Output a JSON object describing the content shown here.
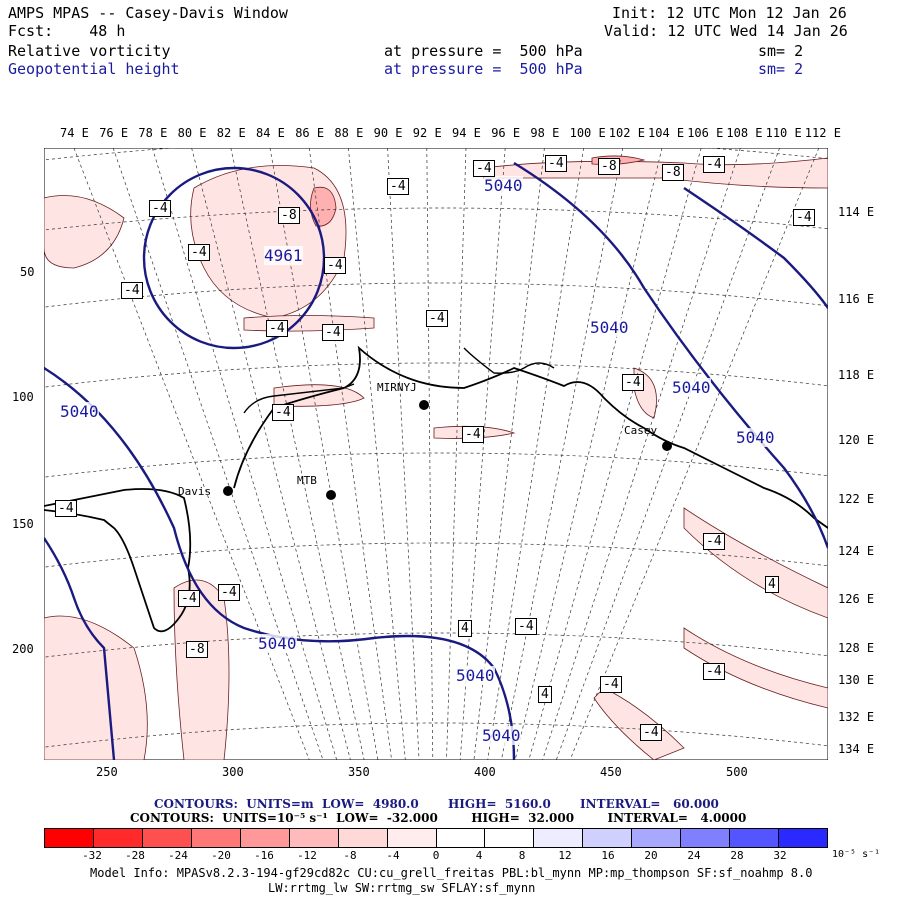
{
  "header": {
    "line1_left": "AMPS MPAS -- Casey-Davis Window",
    "line2_left": "Fcst:    48 h",
    "line1_right": "Init: 12 UTC Mon 12 Jan 26",
    "line2_right": "Valid: 12 UTC Wed 14 Jan 26",
    "field1_name": "Relative vorticity",
    "field1_level": "at pressure =  500 hPa",
    "field1_sm": "sm= 2",
    "field2_name": "Geopotential height",
    "field2_level": "at pressure =  500 hPa",
    "field2_sm": "sm= 2"
  },
  "top_lon_labels": [
    "74 E",
    "76 E",
    "78 E",
    "80 E",
    "82 E",
    "84 E",
    "86 E",
    "88 E",
    "90 E",
    "92 E",
    "94 E",
    "96 E",
    "98 E",
    "100 E",
    "102 E",
    "104 E",
    "106 E",
    "108 E",
    "110 E",
    "112 E"
  ],
  "right_lon_labels": [
    "114 E",
    "116 E",
    "118 E",
    "120 E",
    "122 E",
    "124 E",
    "126 E",
    "128 E",
    "130 E",
    "132 E",
    "134 E"
  ],
  "left_y_labels": [
    "50",
    "100",
    "150",
    "200"
  ],
  "bottom_x_labels": [
    "250",
    "300",
    "350",
    "400",
    "450",
    "500"
  ],
  "stations": {
    "mirny": "MIRNYJ",
    "casey": "Casey",
    "davis": "Davis",
    "mtb": "MTB"
  },
  "height_labels": {
    "low": "4961",
    "c5040": "5040"
  },
  "vort_labels": {
    "m4": "-4",
    "m8": "-8",
    "p4": "4"
  },
  "footer": {
    "line1": "CONTOURS:  UNITS=m  LOW=  4980.0       HIGH=  5160.0       INTERVAL=   60.000",
    "line2": "CONTOURS:  UNITS=10⁻⁵ s⁻¹  LOW=  -32.000        HIGH=  32.000        INTERVAL=   4.0000"
  },
  "colorbar": {
    "ticks": [
      "-32",
      "-28",
      "-24",
      "-20",
      "-16",
      "-12",
      "-8",
      "-4",
      "0",
      "4",
      "8",
      "12",
      "16",
      "20",
      "24",
      "28",
      "32"
    ],
    "unit": "10⁻⁵ s⁻¹",
    "colors": [
      "#ff0000",
      "#ff2a2a",
      "#ff5050",
      "#ff7777",
      "#ff9999",
      "#ffbbbb",
      "#ffd8d8",
      "#ffeded",
      "#ffffff",
      "#ffffff",
      "#ededff",
      "#d0d0ff",
      "#a8a8ff",
      "#8080ff",
      "#5555ff",
      "#2a2aff",
      "#0000ff"
    ]
  },
  "model_info": {
    "line1": "Model Info: MPASv8.2.3-194-gf29cd82c CU:cu_grell_freitas PBL:bl_mynn MP:mp_thompson SF:sf_noahmp 8.0",
    "line2": "LW:rrtmg_lw SW:rrtmg_sw SFLAY:sf_mynn"
  }
}
